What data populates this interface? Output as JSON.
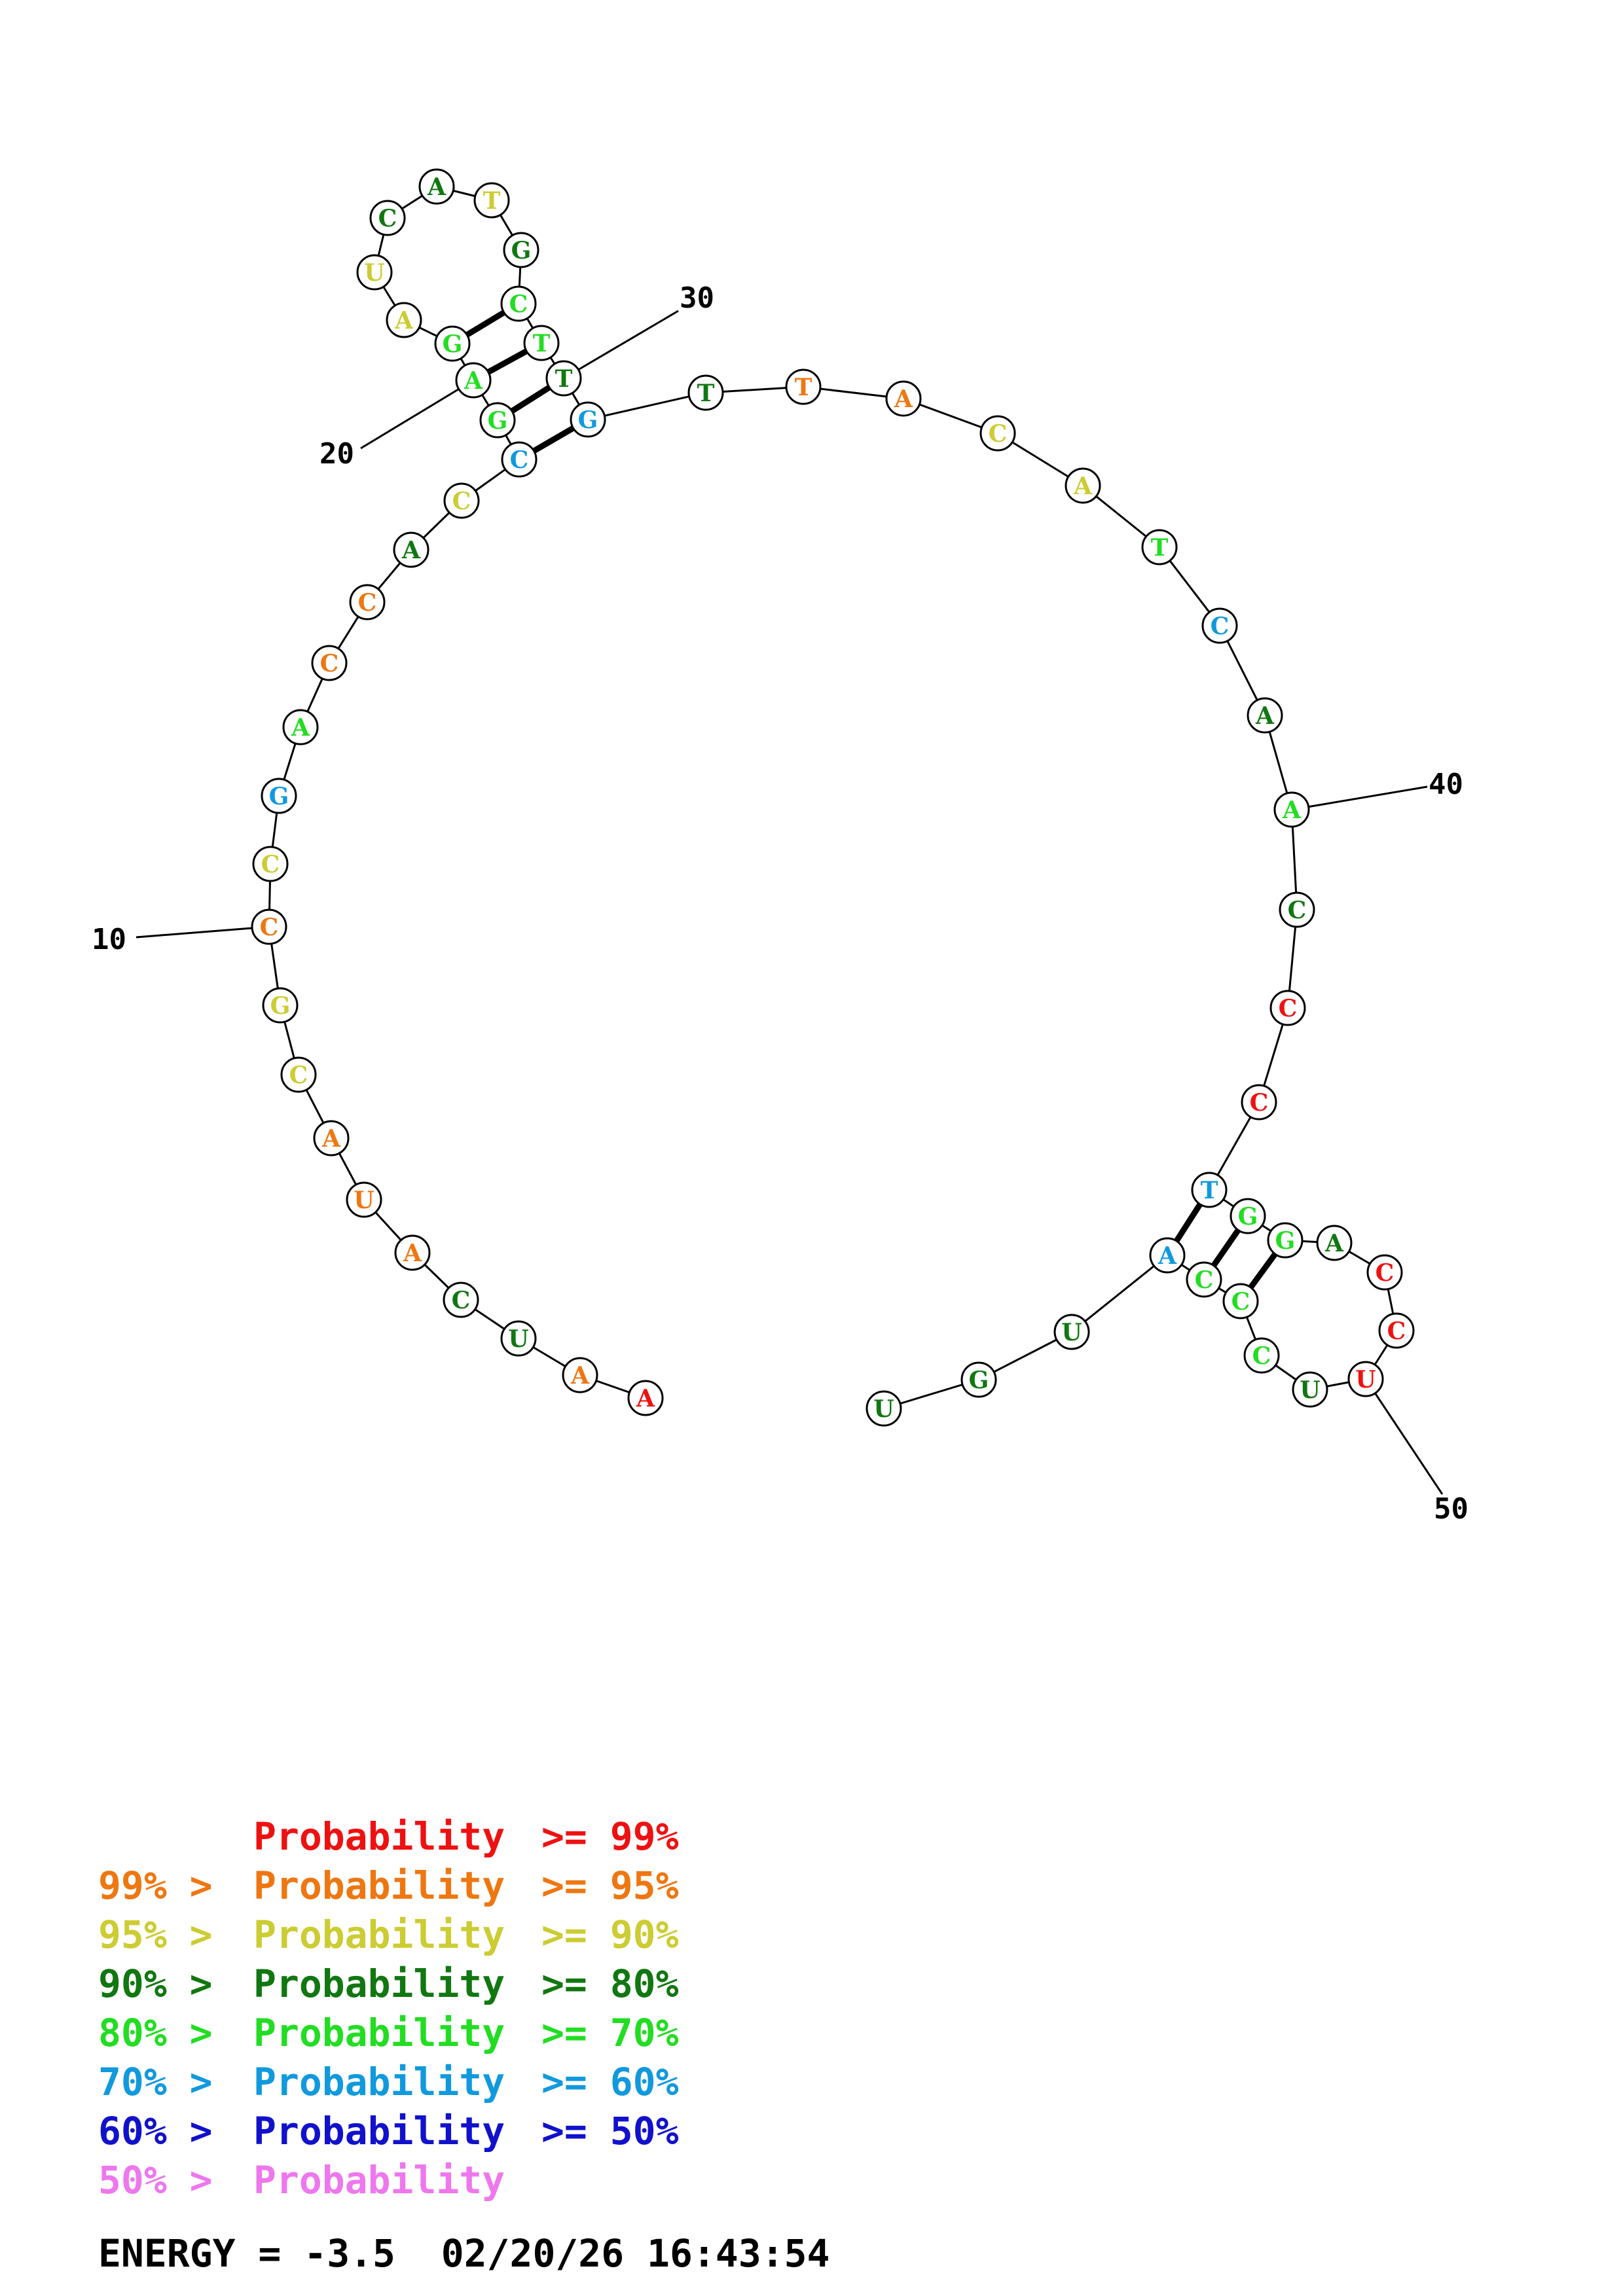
{
  "colors": {
    "red": "#ee1111",
    "orange": "#ee7711",
    "yellow": "#cccc33",
    "darkgreen": "#117711",
    "lightgreen": "#22dd22",
    "cyan": "#1199dd",
    "blue": "#1111cc",
    "pink": "#ee77ee"
  },
  "nucleotides": [
    {
      "n": 1,
      "base": "A",
      "color": "red"
    },
    {
      "n": 2,
      "base": "A",
      "color": "orange"
    },
    {
      "n": 3,
      "base": "U",
      "color": "darkgreen"
    },
    {
      "n": 4,
      "base": "C",
      "color": "darkgreen"
    },
    {
      "n": 5,
      "base": "A",
      "color": "orange"
    },
    {
      "n": 6,
      "base": "U",
      "color": "orange"
    },
    {
      "n": 7,
      "base": "A",
      "color": "orange"
    },
    {
      "n": 8,
      "base": "C",
      "color": "yellow"
    },
    {
      "n": 9,
      "base": "G",
      "color": "yellow"
    },
    {
      "n": 10,
      "base": "C",
      "color": "orange"
    },
    {
      "n": 11,
      "base": "C",
      "color": "yellow"
    },
    {
      "n": 12,
      "base": "G",
      "color": "cyan"
    },
    {
      "n": 13,
      "base": "A",
      "color": "lightgreen"
    },
    {
      "n": 14,
      "base": "C",
      "color": "orange"
    },
    {
      "n": 15,
      "base": "C",
      "color": "orange"
    },
    {
      "n": 16,
      "base": "A",
      "color": "darkgreen"
    },
    {
      "n": 17,
      "base": "C",
      "color": "yellow"
    },
    {
      "n": 18,
      "base": "C",
      "color": "cyan"
    },
    {
      "n": 19,
      "base": "G",
      "color": "lightgreen"
    },
    {
      "n": 20,
      "base": "A",
      "color": "lightgreen"
    },
    {
      "n": 21,
      "base": "G",
      "color": "lightgreen"
    },
    {
      "n": 22,
      "base": "A",
      "color": "yellow"
    },
    {
      "n": 23,
      "base": "U",
      "color": "yellow"
    },
    {
      "n": 24,
      "base": "C",
      "color": "darkgreen"
    },
    {
      "n": 25,
      "base": "A",
      "color": "darkgreen"
    },
    {
      "n": 26,
      "base": "T",
      "color": "yellow"
    },
    {
      "n": 27,
      "base": "G",
      "color": "darkgreen"
    },
    {
      "n": 28,
      "base": "C",
      "color": "lightgreen"
    },
    {
      "n": 29,
      "base": "T",
      "color": "lightgreen"
    },
    {
      "n": 30,
      "base": "T",
      "color": "darkgreen"
    },
    {
      "n": 31,
      "base": "G",
      "color": "cyan"
    },
    {
      "n": 32,
      "base": "T",
      "color": "darkgreen"
    },
    {
      "n": 33,
      "base": "T",
      "color": "orange"
    },
    {
      "n": 34,
      "base": "A",
      "color": "orange"
    },
    {
      "n": 35,
      "base": "C",
      "color": "yellow"
    },
    {
      "n": 36,
      "base": "A",
      "color": "yellow"
    },
    {
      "n": 37,
      "base": "T",
      "color": "lightgreen"
    },
    {
      "n": 38,
      "base": "C",
      "color": "cyan"
    },
    {
      "n": 39,
      "base": "A",
      "color": "darkgreen"
    },
    {
      "n": 40,
      "base": "A",
      "color": "lightgreen"
    },
    {
      "n": 41,
      "base": "C",
      "color": "darkgreen"
    },
    {
      "n": 42,
      "base": "C",
      "color": "red"
    },
    {
      "n": 43,
      "base": "C",
      "color": "red"
    },
    {
      "n": 44,
      "base": "T",
      "color": "cyan"
    },
    {
      "n": 45,
      "base": "G",
      "color": "lightgreen"
    },
    {
      "n": 46,
      "base": "G",
      "color": "lightgreen"
    },
    {
      "n": 47,
      "base": "A",
      "color": "darkgreen"
    },
    {
      "n": 48,
      "base": "C",
      "color": "red"
    },
    {
      "n": 49,
      "base": "C",
      "color": "red"
    },
    {
      "n": 50,
      "base": "U",
      "color": "red"
    },
    {
      "n": 51,
      "base": "U",
      "color": "darkgreen"
    },
    {
      "n": 52,
      "base": "C",
      "color": "lightgreen"
    },
    {
      "n": 53,
      "base": "C",
      "color": "lightgreen"
    },
    {
      "n": 54,
      "base": "C",
      "color": "lightgreen"
    },
    {
      "n": 55,
      "base": "A",
      "color": "cyan"
    },
    {
      "n": 56,
      "base": "U",
      "color": "darkgreen"
    },
    {
      "n": 57,
      "base": "G",
      "color": "darkgreen"
    },
    {
      "n": 58,
      "base": "U",
      "color": "darkgreen"
    }
  ],
  "pairs": [
    [
      18,
      31
    ],
    [
      19,
      30
    ],
    [
      20,
      29
    ],
    [
      21,
      28
    ],
    [
      44,
      55
    ],
    [
      45,
      54
    ],
    [
      46,
      53
    ]
  ],
  "position_labels": [
    "10",
    "20",
    "30",
    "40",
    "50"
  ],
  "legend": [
    {
      "prefix": "",
      "label": "Probability",
      "suffix": ">= 99%",
      "color": "red"
    },
    {
      "prefix": "99% >",
      "label": "Probability",
      "suffix": ">= 95%",
      "color": "orange"
    },
    {
      "prefix": "95% >",
      "label": "Probability",
      "suffix": ">= 90%",
      "color": "yellow"
    },
    {
      "prefix": "90% >",
      "label": "Probability",
      "suffix": ">= 80%",
      "color": "darkgreen"
    },
    {
      "prefix": "80% >",
      "label": "Probability",
      "suffix": ">= 70%",
      "color": "lightgreen"
    },
    {
      "prefix": "70% >",
      "label": "Probability",
      "suffix": ">= 60%",
      "color": "cyan"
    },
    {
      "prefix": "60% >",
      "label": "Probability",
      "suffix": ">= 50%",
      "color": "blue"
    },
    {
      "prefix": "50% >",
      "label": "Probability",
      "suffix": "",
      "color": "pink"
    }
  ],
  "energy_line": "ENERGY = -3.5  02/20/26 16:43:54"
}
